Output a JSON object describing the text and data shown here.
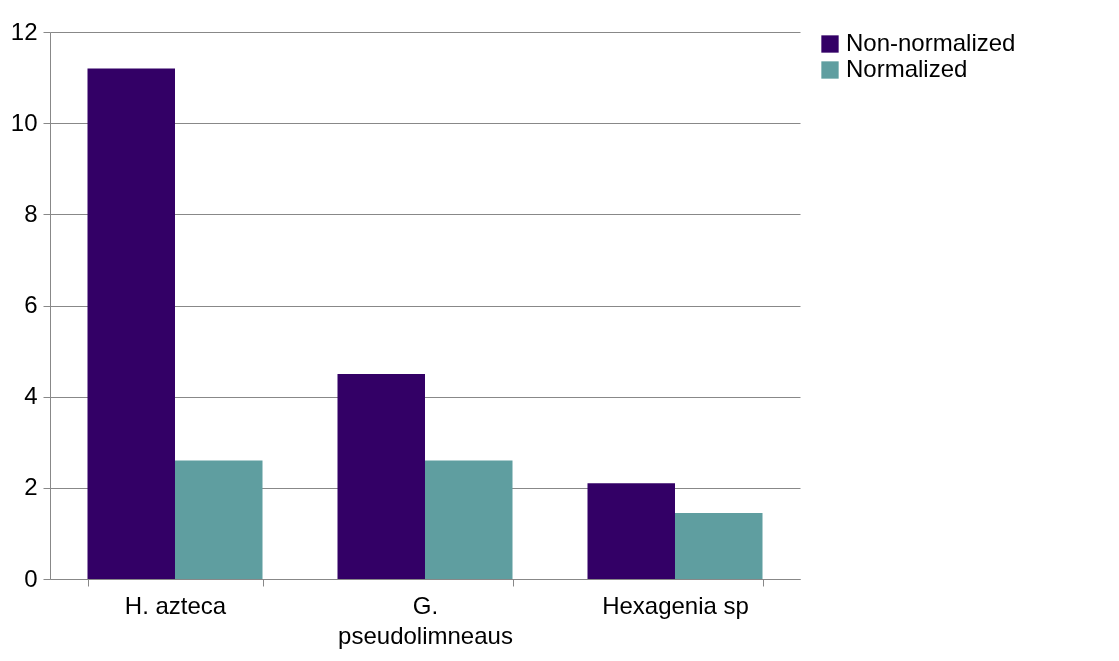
{
  "chart_data": {
    "type": "bar",
    "categories": [
      "H. azteca",
      "G. pseudolimneaus",
      "Hexagenia sp"
    ],
    "series": [
      {
        "name": "Non-normalized",
        "color": "#330066",
        "values": [
          11.2,
          4.5,
          2.1
        ]
      },
      {
        "name": "Normalized",
        "color": "#5f9ea0",
        "values": [
          2.6,
          2.6,
          1.45
        ]
      }
    ],
    "ylim": [
      0,
      12
    ],
    "yticks": [
      0,
      2,
      4,
      6,
      8,
      10,
      12
    ],
    "grid": "y",
    "legend": "right"
  }
}
